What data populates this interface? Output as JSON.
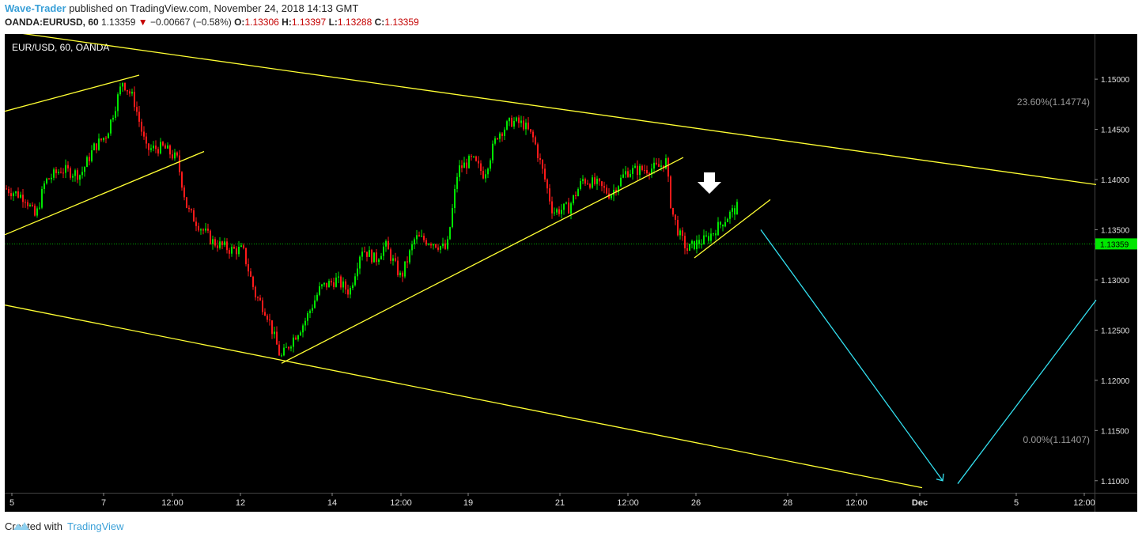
{
  "header": {
    "author": "Wave-Trader",
    "published": "published on TradingView.com, November 24, 2018 14:13 GMT",
    "symbol": "OANDA:EURUSD, 60",
    "last": "1.13359",
    "change": "−0.00667 (−0.58%)",
    "o_label": "O:",
    "o_val": "1.13306",
    "h_label": "H:",
    "h_val": "1.13397",
    "l_label": "L:",
    "l_val": "1.13288",
    "c_label": "C:",
    "c_val": "1.13359"
  },
  "footer": {
    "created": "Created with",
    "brand": "TradingView"
  },
  "colors": {
    "up": "#00e600",
    "down": "#ff1a1a",
    "line": "#ffff33",
    "projection": "#33e0f0",
    "price_tag": "#00e600"
  },
  "chart_data": {
    "type": "candlestick",
    "title": "EUR/USD, 60, OANDA",
    "ylim": [
      1.1088,
      1.1545
    ],
    "y_ticks": [
      "1.15000",
      "1.14500",
      "1.14000",
      "1.13500",
      "1.13000",
      "1.12500",
      "1.12000",
      "1.11500",
      "1.11000"
    ],
    "x_ticks": [
      "5",
      "7",
      "12:00",
      "12",
      "14",
      "12:00",
      "19",
      "21",
      "12:00",
      "26",
      "28",
      "12:00",
      "Dec",
      "5",
      "12:00"
    ],
    "last_price": "1.13359",
    "fib_levels": [
      {
        "label": "23.60%(1.14774)",
        "value": 1.14774
      },
      {
        "label": "0.00%(1.11407)",
        "value": 1.11407
      }
    ],
    "price_path": [
      {
        "x": 0,
        "p": 1.1391
      },
      {
        "x": 25,
        "p": 1.1382
      },
      {
        "x": 38,
        "p": 1.1362
      },
      {
        "x": 50,
        "p": 1.1398
      },
      {
        "x": 70,
        "p": 1.141
      },
      {
        "x": 95,
        "p": 1.1405
      },
      {
        "x": 112,
        "p": 1.1432
      },
      {
        "x": 128,
        "p": 1.1445
      },
      {
        "x": 148,
        "p": 1.1498
      },
      {
        "x": 162,
        "p": 1.148
      },
      {
        "x": 178,
        "p": 1.143
      },
      {
        "x": 200,
        "p": 1.1432
      },
      {
        "x": 217,
        "p": 1.142
      },
      {
        "x": 230,
        "p": 1.137
      },
      {
        "x": 244,
        "p": 1.1355
      },
      {
        "x": 262,
        "p": 1.1338
      },
      {
        "x": 285,
        "p": 1.133
      },
      {
        "x": 300,
        "p": 1.133
      },
      {
        "x": 316,
        "p": 1.1285
      },
      {
        "x": 330,
        "p": 1.1268
      },
      {
        "x": 348,
        "p": 1.1222
      },
      {
        "x": 362,
        "p": 1.124
      },
      {
        "x": 378,
        "p": 1.1258
      },
      {
        "x": 398,
        "p": 1.1292
      },
      {
        "x": 418,
        "p": 1.13
      },
      {
        "x": 435,
        "p": 1.1288
      },
      {
        "x": 450,
        "p": 1.1332
      },
      {
        "x": 468,
        "p": 1.132
      },
      {
        "x": 480,
        "p": 1.1335
      },
      {
        "x": 500,
        "p": 1.1302
      },
      {
        "x": 518,
        "p": 1.1342
      },
      {
        "x": 540,
        "p": 1.1338
      },
      {
        "x": 558,
        "p": 1.133
      },
      {
        "x": 572,
        "p": 1.141
      },
      {
        "x": 590,
        "p": 1.142
      },
      {
        "x": 605,
        "p": 1.1405
      },
      {
        "x": 622,
        "p": 1.1445
      },
      {
        "x": 640,
        "p": 1.1458
      },
      {
        "x": 655,
        "p": 1.1455
      },
      {
        "x": 668,
        "p": 1.144
      },
      {
        "x": 682,
        "p": 1.14
      },
      {
        "x": 692,
        "p": 1.1368
      },
      {
        "x": 712,
        "p": 1.1372
      },
      {
        "x": 730,
        "p": 1.14
      },
      {
        "x": 748,
        "p": 1.1395
      },
      {
        "x": 765,
        "p": 1.1385
      },
      {
        "x": 785,
        "p": 1.1408
      },
      {
        "x": 805,
        "p": 1.141
      },
      {
        "x": 825,
        "p": 1.1412
      },
      {
        "x": 835,
        "p": 1.1418
      },
      {
        "x": 842,
        "p": 1.137
      },
      {
        "x": 852,
        "p": 1.1345
      },
      {
        "x": 862,
        "p": 1.133
      },
      {
        "x": 872,
        "p": 1.1336
      },
      {
        "x": 885,
        "p": 1.134
      },
      {
        "x": 900,
        "p": 1.1352
      },
      {
        "x": 915,
        "p": 1.1365
      },
      {
        "x": 925,
        "p": 1.1372
      }
    ],
    "trend_lines": [
      {
        "x1": 0,
        "p1": 1.1548,
        "x2": 1380,
        "p2": 1.1395
      },
      {
        "x1": 0,
        "p1": 1.1275,
        "x2": 1160,
        "p2": 1.1093
      },
      {
        "x1": 0,
        "p1": 1.1468,
        "x2": 170,
        "p2": 1.1504
      },
      {
        "x1": 0,
        "p1": 1.1345,
        "x2": 252,
        "p2": 1.1428
      },
      {
        "x1": 350,
        "p1": 1.1217,
        "x2": 858,
        "p2": 1.1422
      },
      {
        "x1": 872,
        "p1": 1.1322,
        "x2": 968,
        "p2": 1.138
      }
    ],
    "projection": [
      {
        "x1": 956,
        "p1": 1.135,
        "x2": 1186,
        "p2": 1.11
      },
      {
        "x1": 1205,
        "p1": 1.1097,
        "x2": 1380,
        "p2": 1.128
      }
    ]
  }
}
